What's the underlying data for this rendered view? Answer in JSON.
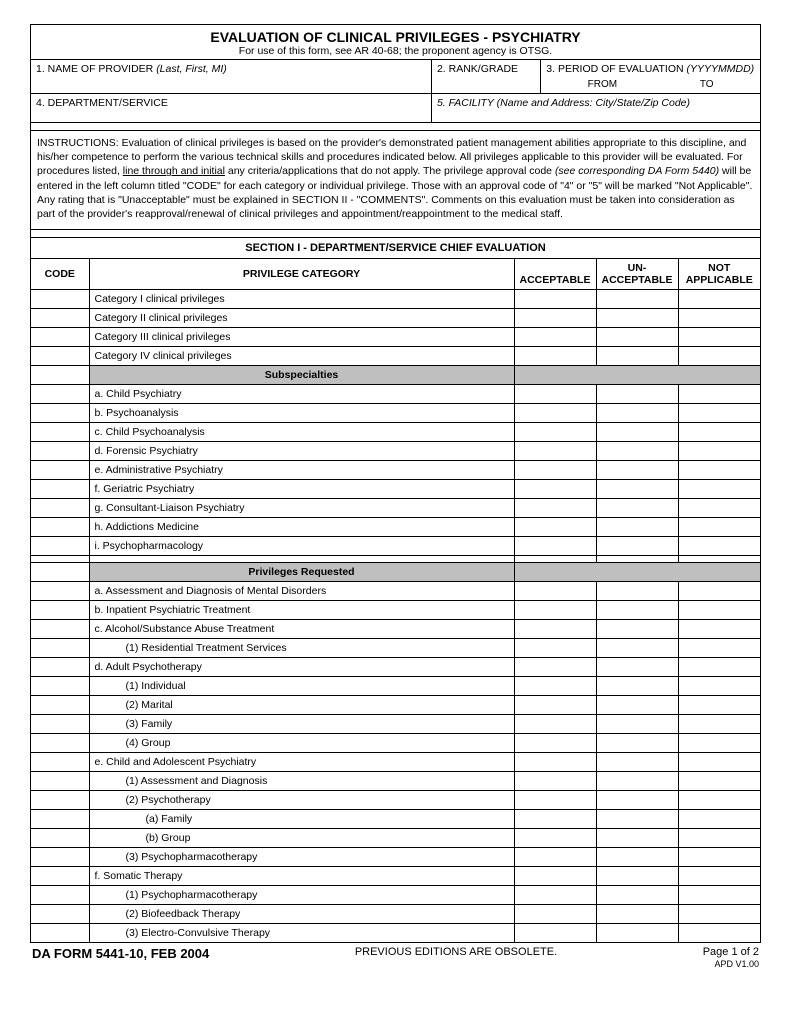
{
  "title": "EVALUATION OF CLINICAL PRIVILEGES - PSYCHIATRY",
  "subtitle": "For use of this form, see AR 40-68; the proponent agency is OTSG.",
  "fields": {
    "f1_label": "1.  NAME OF PROVIDER ",
    "f1_hint": "(Last, First, MI)",
    "f2_label": "2.  RANK/GRADE",
    "f3_label": "3.  PERIOD OF EVALUATION ",
    "f3_hint": "(YYYYMMDD)",
    "f3_from": "FROM",
    "f3_to": "TO",
    "f4_label": "4.  DEPARTMENT/SERVICE",
    "f5_label": "5.  FACILITY ",
    "f5_hint": "(Name and Address:  City/State/Zip Code)"
  },
  "instructions": {
    "lead": "INSTRUCTIONS:  Evaluation of clinical privileges is based on the provider's demonstrated patient management abilities appropriate to this discipline, and his/her competence to perform the various technical skills and procedures indicated below.  All privileges applicable to this provider will be evaluated.  For procedures listed, ",
    "underlined": "line through and initial",
    "mid": " any criteria/applications that do not apply.  The privilege approval code ",
    "italic": "(see corresponding DA Form 5440)",
    "tail": " will be entered in the left column titled \"CODE\" for each category or individual privilege.  Those with an approval code of \"4\" or \"5\" will be marked \"Not Applicable\".  Any rating that is \"Unacceptable\" must be explained in SECTION II - \"COMMENTS\".  Comments on this evaluation must be taken into consideration as part of the provider's reapproval/renewal of clinical privileges and appointment/reappointment to the medical staff."
  },
  "section1_title": "SECTION I - DEPARTMENT/SERVICE CHIEF EVALUATION",
  "cols": {
    "code": "CODE",
    "category": "PRIVILEGE CATEGORY",
    "acceptable": "ACCEPTABLE",
    "unacceptable_top": "UN-",
    "unacceptable_bot": "ACCEPTABLE",
    "not_top": "NOT",
    "not_bot": "APPLICABLE"
  },
  "rows": [
    {
      "t": "Category I clinical privileges",
      "i": 0
    },
    {
      "t": "Category II clinical privileges",
      "i": 0
    },
    {
      "t": "Category III clinical privileges",
      "i": 0
    },
    {
      "t": "Category IV clinical privileges",
      "i": 0
    }
  ],
  "sub1_title": "Subspecialties",
  "sub1_rows": [
    {
      "t": "a.  Child Psychiatry",
      "i": 0
    },
    {
      "t": "b.  Psychoanalysis",
      "i": 0
    },
    {
      "t": "c.  Child Psychoanalysis",
      "i": 0
    },
    {
      "t": "d.  Forensic Psychiatry",
      "i": 0
    },
    {
      "t": "e.  Administrative Psychiatry",
      "i": 0
    },
    {
      "t": "f.   Geriatric Psychiatry",
      "i": 0
    },
    {
      "t": "g.  Consultant-Liaison Psychiatry",
      "i": 0
    },
    {
      "t": "h.  Addictions Medicine",
      "i": 0
    },
    {
      "t": "i.   Psychopharmacology",
      "i": 0
    },
    {
      "t": "",
      "i": 0
    }
  ],
  "sub2_title": "Privileges Requested",
  "sub2_rows": [
    {
      "t": "a.  Assessment and Diagnosis of Mental Disorders",
      "i": 0
    },
    {
      "t": "b.  Inpatient Psychiatric Treatment",
      "i": 0
    },
    {
      "t": "c.  Alcohol/Substance Abuse Treatment",
      "i": 0
    },
    {
      "t": "(1)  Residential Treatment Services",
      "i": 1
    },
    {
      "t": "d.  Adult Psychotherapy",
      "i": 0
    },
    {
      "t": "(1)  Individual",
      "i": 1
    },
    {
      "t": "(2)  Marital",
      "i": 1
    },
    {
      "t": "(3)  Family",
      "i": 1
    },
    {
      "t": "(4)  Group",
      "i": 1
    },
    {
      "t": "e. Child and Adolescent Psychiatry",
      "i": 0
    },
    {
      "t": "(1)  Assessment and Diagnosis",
      "i": 1
    },
    {
      "t": "(2)  Psychotherapy",
      "i": 1
    },
    {
      "t": "(a)  Family",
      "i": 2
    },
    {
      "t": "(b)  Group",
      "i": 2
    },
    {
      "t": "(3)  Psychopharmacotherapy",
      "i": 1
    },
    {
      "t": "f.   Somatic Therapy",
      "i": 0
    },
    {
      "t": "(1)  Psychopharmacotherapy",
      "i": 1
    },
    {
      "t": "(2)  Biofeedback Therapy",
      "i": 1
    },
    {
      "t": "(3)  Electro-Convulsive Therapy",
      "i": 1
    }
  ],
  "footer": {
    "form_id": "DA FORM 5441-10, FEB 2004",
    "obsolete": "PREVIOUS EDITIONS ARE OBSOLETE.",
    "page": "Page 1 of 2",
    "apd": "APD V1.00"
  },
  "colors": {
    "gray": "#bfbfbf",
    "border": "#000000",
    "bg": "#ffffff"
  }
}
